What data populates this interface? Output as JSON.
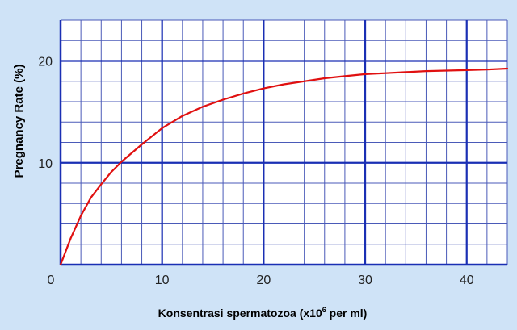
{
  "chart_data": {
    "type": "line",
    "title": "",
    "ylabel": "Pregnancy Rate (%)",
    "xlabel_parts": {
      "before": "Konsentrasi spermatozoa (x10",
      "superscript": "6",
      "after": " per ml)"
    },
    "xlim": [
      0,
      44
    ],
    "ylim": [
      0,
      24
    ],
    "x_ticks": [
      0,
      10,
      20,
      30,
      40
    ],
    "x_tick_labels": [
      "0",
      "10",
      "20",
      "30",
      "40"
    ],
    "y_ticks": [
      10,
      20
    ],
    "y_tick_labels": [
      "10",
      "20"
    ],
    "grid": true,
    "minor_grid_step_x": 2,
    "minor_grid_step_y": 2,
    "series": [
      {
        "color": "#e01010",
        "x": [
          0,
          1,
          2,
          3,
          4,
          5,
          6,
          8,
          10,
          12,
          14,
          16,
          18,
          20,
          22,
          24,
          26,
          28,
          30,
          32,
          34,
          36,
          38,
          40,
          42,
          44
        ],
        "y": [
          0,
          2.6,
          4.8,
          6.6,
          7.9,
          9.1,
          10.1,
          11.8,
          13.4,
          14.6,
          15.5,
          16.2,
          16.8,
          17.3,
          17.7,
          18.0,
          18.3,
          18.5,
          18.7,
          18.8,
          18.9,
          19.0,
          19.05,
          19.1,
          19.15,
          19.25
        ]
      }
    ],
    "colors": {
      "background": "#cfe3f7",
      "plot_background": "#ffffff",
      "major_grid": "#1a2fb4",
      "minor_grid": "#4a5ab8"
    }
  }
}
